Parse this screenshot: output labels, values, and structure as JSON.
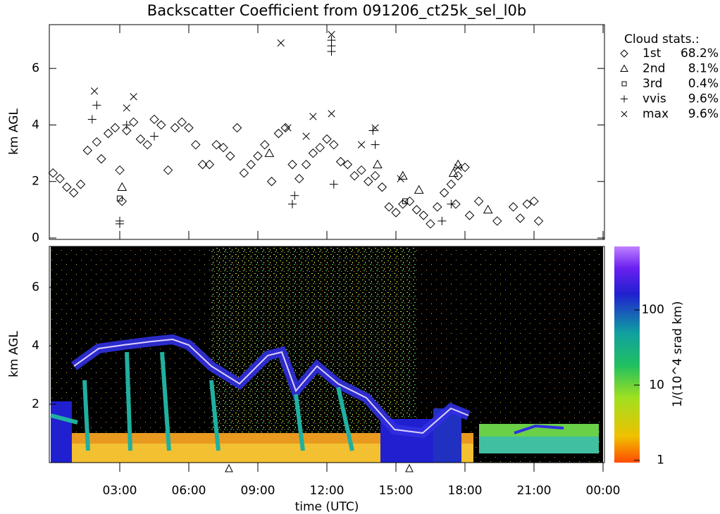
{
  "chart_data": [
    {
      "type": "scatter",
      "title": "Backscatter Coefficient from 091206_ct25k_sel_l0b",
      "ylabel": "km AGL",
      "xlim": [
        0,
        24
      ],
      "ylim": [
        0,
        7.5
      ],
      "yticks": [
        0,
        2,
        4,
        6
      ],
      "legend_title": "Cloud stats.:",
      "legend": "right",
      "series": [
        {
          "name": "1st",
          "marker": "diamond",
          "stat": 68.2,
          "stat_label": "68.2%",
          "x": [
            0.1,
            0.4,
            0.7,
            1.0,
            1.3,
            1.6,
            2.0,
            2.2,
            2.5,
            2.8,
            3.0,
            3.1,
            3.3,
            3.6,
            3.9,
            4.2,
            4.5,
            4.8,
            5.1,
            5.4,
            5.7,
            6.0,
            6.3,
            6.6,
            6.9,
            7.2,
            7.5,
            7.8,
            8.1,
            8.4,
            8.7,
            9.0,
            9.3,
            9.6,
            9.9,
            10.2,
            10.5,
            10.8,
            11.1,
            11.4,
            11.7,
            12.0,
            12.3,
            12.6,
            12.9,
            13.2,
            13.5,
            13.8,
            14.1,
            14.4,
            14.7,
            15.0,
            15.3,
            15.6,
            15.9,
            16.2,
            16.5,
            16.8,
            17.1,
            17.4,
            17.7,
            18.0,
            17.6,
            18.2,
            18.6,
            19.4,
            20.1,
            20.4,
            20.7,
            21.0,
            21.2
          ],
          "values": [
            2.3,
            2.1,
            1.8,
            1.6,
            1.9,
            3.1,
            3.4,
            2.8,
            3.7,
            3.9,
            2.4,
            1.3,
            3.8,
            4.1,
            3.5,
            3.3,
            4.2,
            4.0,
            2.4,
            3.9,
            4.1,
            3.9,
            3.3,
            2.6,
            2.6,
            3.3,
            3.2,
            2.9,
            3.9,
            2.3,
            2.6,
            2.9,
            3.3,
            2.0,
            3.7,
            3.9,
            2.6,
            2.1,
            2.6,
            3.0,
            3.2,
            3.5,
            3.3,
            2.7,
            2.6,
            2.2,
            2.4,
            2.0,
            2.2,
            1.8,
            1.1,
            0.9,
            1.2,
            1.3,
            1.0,
            0.8,
            0.5,
            1.1,
            1.6,
            1.9,
            2.2,
            2.5,
            1.2,
            0.8,
            1.3,
            0.6,
            1.1,
            0.7,
            1.2,
            1.3,
            0.6
          ]
        },
        {
          "name": "2nd",
          "marker": "triangle",
          "stat": 8.1,
          "stat_label": "8.1%",
          "x": [
            17.7,
            17.5,
            15.3,
            14.2,
            16.0,
            19.0,
            9.5,
            3.1
          ],
          "values": [
            2.6,
            2.3,
            2.2,
            2.6,
            1.7,
            1.0,
            3.0,
            1.8
          ]
        },
        {
          "name": "3rd",
          "marker": "square",
          "stat": 0.4,
          "stat_label": "0.4%",
          "x": [
            3.0,
            15.4
          ],
          "values": [
            1.4,
            1.3
          ]
        },
        {
          "name": "vvis",
          "marker": "plus",
          "stat": 9.6,
          "stat_label": "9.6%",
          "x": [
            3.0,
            3.0,
            1.8,
            2.0,
            3.3,
            4.5,
            10.5,
            10.6,
            12.2,
            12.2,
            12.2,
            12.3,
            14.0,
            14.1,
            17.0,
            17.4
          ],
          "values": [
            0.5,
            0.6,
            4.2,
            4.7,
            4.0,
            3.6,
            1.2,
            1.5,
            6.6,
            6.8,
            7.0,
            1.9,
            3.8,
            3.3,
            0.6,
            1.2
          ]
        },
        {
          "name": "max",
          "marker": "cross",
          "stat": 9.6,
          "stat_label": "9.6%",
          "x": [
            1.9,
            3.3,
            3.6,
            10.0,
            10.3,
            11.1,
            11.4,
            12.2,
            12.2,
            14.1,
            13.5,
            15.2,
            17.7
          ],
          "values": [
            5.2,
            4.6,
            5.0,
            6.9,
            3.9,
            3.6,
            4.3,
            7.2,
            4.4,
            3.9,
            3.3,
            2.1,
            2.5
          ]
        }
      ]
    },
    {
      "type": "heatmap",
      "ylabel": "km AGL",
      "xlabel": "time (UTC)",
      "xlim": [
        0,
        24
      ],
      "xticks": [
        {
          "value": 3,
          "label": "03:00"
        },
        {
          "value": 6,
          "label": "06:00"
        },
        {
          "value": 9,
          "label": "09:00"
        },
        {
          "value": 12,
          "label": "12:00"
        },
        {
          "value": 15,
          "label": "15:00"
        },
        {
          "value": 18,
          "label": "18:00"
        },
        {
          "value": 21,
          "label": "21:00"
        },
        {
          "value": 24,
          "label": "00:00"
        }
      ],
      "ylim": [
        0,
        7.4
      ],
      "yticks": [
        2,
        4,
        6
      ],
      "colorbar_label": "1/(10^4 srad km)",
      "clim": [
        0.93,
        700
      ],
      "cticks": [
        1,
        10,
        100
      ],
      "color_scale": "log"
    }
  ]
}
